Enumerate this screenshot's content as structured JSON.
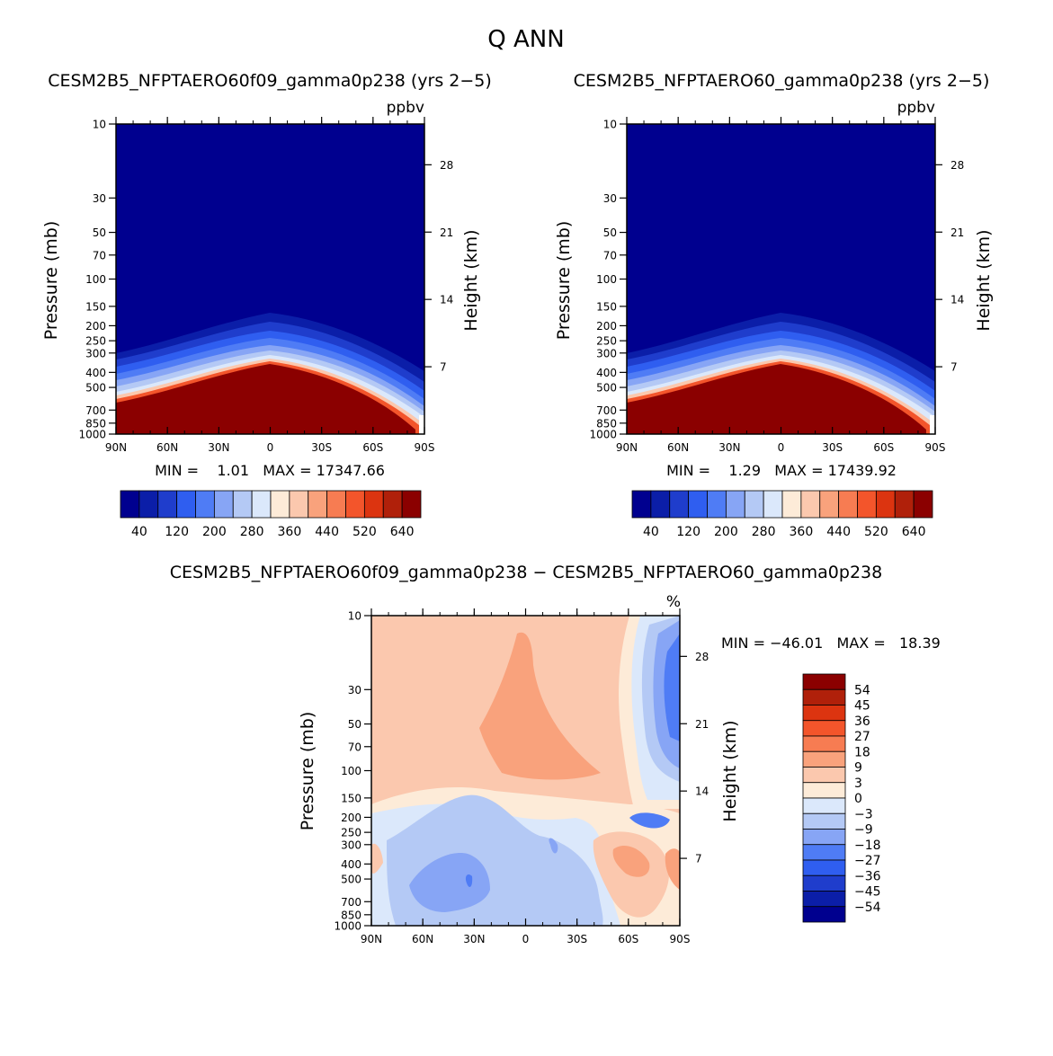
{
  "figure": {
    "title": "Q ANN"
  },
  "chart_data": [
    {
      "type": "heatmap",
      "title": "CESM2B5_NFPTAERO60f09_gamma0p238 (yrs 2−5)",
      "units": "ppbv",
      "xlabel": "",
      "ylabel": "Pressure (mb)",
      "y2label": "Height (km)",
      "x_ticks": [
        "90N",
        "60N",
        "30N",
        "0",
        "30S",
        "60S",
        "90S"
      ],
      "x_range": [
        90,
        -90
      ],
      "y_ticks": [
        10,
        30,
        50,
        70,
        100,
        150,
        200,
        250,
        300,
        400,
        500,
        700,
        850,
        1000
      ],
      "y_range": [
        10,
        1000
      ],
      "y2_ticks": [
        28,
        21,
        14,
        7
      ],
      "stats_text": "MIN =    1.01   MAX = 17347.66",
      "min": 1.01,
      "max": 17347.66,
      "colorbar_labels": [
        "40",
        "120",
        "200",
        "280",
        "360",
        "440",
        "520",
        "640"
      ]
    },
    {
      "type": "heatmap",
      "title": "CESM2B5_NFPTAERO60_gamma0p238 (yrs 2−5)",
      "units": "ppbv",
      "xlabel": "",
      "ylabel": "Pressure (mb)",
      "y2label": "Height (km)",
      "x_ticks": [
        "90N",
        "60N",
        "30N",
        "0",
        "30S",
        "60S",
        "90S"
      ],
      "x_range": [
        90,
        -90
      ],
      "y_ticks": [
        10,
        30,
        50,
        70,
        100,
        150,
        200,
        250,
        300,
        400,
        500,
        700,
        850,
        1000
      ],
      "y_range": [
        10,
        1000
      ],
      "y2_ticks": [
        28,
        21,
        14,
        7
      ],
      "stats_text": "MIN =    1.29   MAX = 17439.92",
      "min": 1.29,
      "max": 17439.92,
      "colorbar_labels": [
        "40",
        "120",
        "200",
        "280",
        "360",
        "440",
        "520",
        "640"
      ]
    },
    {
      "type": "heatmap",
      "title": "CESM2B5_NFPTAERO60f09_gamma0p238 − CESM2B5_NFPTAERO60_gamma0p238",
      "units": "%",
      "ylabel": "Pressure (mb)",
      "y2label": "Height (km)",
      "x_ticks": [
        "90N",
        "60N",
        "30N",
        "0",
        "30S",
        "60S",
        "90S"
      ],
      "x_range": [
        90,
        -90
      ],
      "y_ticks": [
        10,
        30,
        50,
        70,
        100,
        150,
        200,
        250,
        300,
        400,
        500,
        700,
        850,
        1000
      ],
      "y_range": [
        10,
        1000
      ],
      "y2_ticks": [
        28,
        21,
        14,
        7
      ],
      "stats_text": "MIN = −46.01   MAX =   18.39",
      "min": -46.01,
      "max": 18.39,
      "colorbar_labels": [
        "54",
        "45",
        "36",
        "27",
        "18",
        "9",
        "3",
        "0",
        "−3",
        "−9",
        "−18",
        "−27",
        "−36",
        "−45",
        "−54"
      ]
    }
  ],
  "colors": {
    "abs_scale": [
      "#00008f",
      "#0b1ea8",
      "#1f3dcc",
      "#2f5ef0",
      "#4f7cf5",
      "#87a5f5",
      "#b4c9f5",
      "#dbe8fb",
      "#fdebd8",
      "#fbc8ae",
      "#f9a27c",
      "#f77c52",
      "#f3552b",
      "#dc3410",
      "#b0200a",
      "#8b0000"
    ],
    "diff_scale": [
      "#8b0000",
      "#b0200a",
      "#dc3410",
      "#f3552b",
      "#f77c52",
      "#f9a27c",
      "#fbc8ae",
      "#fdebd8",
      "#dbe8fb",
      "#b4c9f5",
      "#87a5f5",
      "#4f7cf5",
      "#2f5ef0",
      "#1f3dcc",
      "#0b1ea8",
      "#00008f"
    ]
  }
}
